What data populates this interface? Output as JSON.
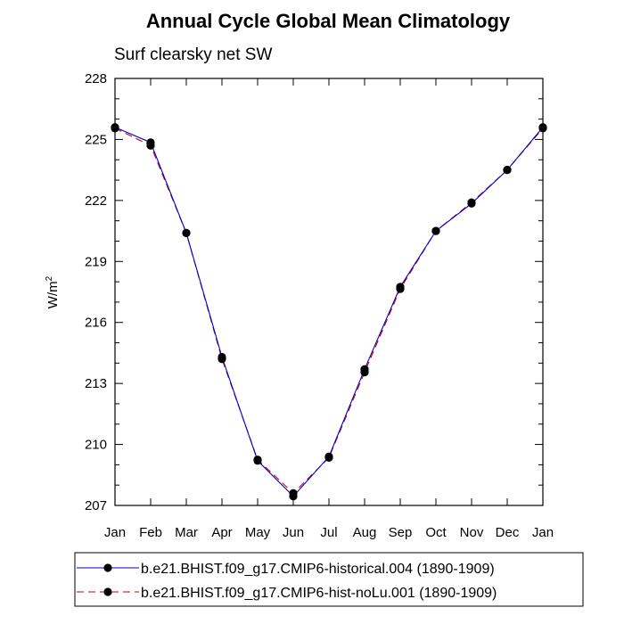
{
  "chart_data": {
    "type": "line",
    "title": "Annual Cycle Global Mean Climatology",
    "subtitle": "Surf clearsky net SW",
    "ylabel": "W/m",
    "ylabel_superscript": "2",
    "xlabel": "",
    "categories": [
      "Jan",
      "Feb",
      "Mar",
      "Apr",
      "May",
      "Jun",
      "Jul",
      "Aug",
      "Sep",
      "Oct",
      "Nov",
      "Dec",
      "Jan"
    ],
    "ylim": [
      207,
      228
    ],
    "yticks": [
      207,
      210,
      213,
      216,
      219,
      222,
      225,
      228
    ],
    "grid": false,
    "legend_position": "bottom",
    "series": [
      {
        "name": "b.e21.BHIST.f09_g17.CMIP6-historical.004 (1890-1909)",
        "values": [
          225.6,
          224.85,
          220.4,
          214.3,
          209.2,
          207.45,
          209.4,
          213.7,
          217.75,
          220.5,
          221.85,
          223.5,
          225.6
        ],
        "color": "#0000cc",
        "dash": "solid"
      },
      {
        "name": "b.e21.BHIST.f09_g17.CMIP6-hist-noLu.001 (1890-1909)",
        "values": [
          225.55,
          224.7,
          220.4,
          214.2,
          209.25,
          207.6,
          209.35,
          213.55,
          217.65,
          220.5,
          221.9,
          223.5,
          225.55
        ],
        "color": "#cc0000",
        "dash": "dashed"
      }
    ]
  }
}
